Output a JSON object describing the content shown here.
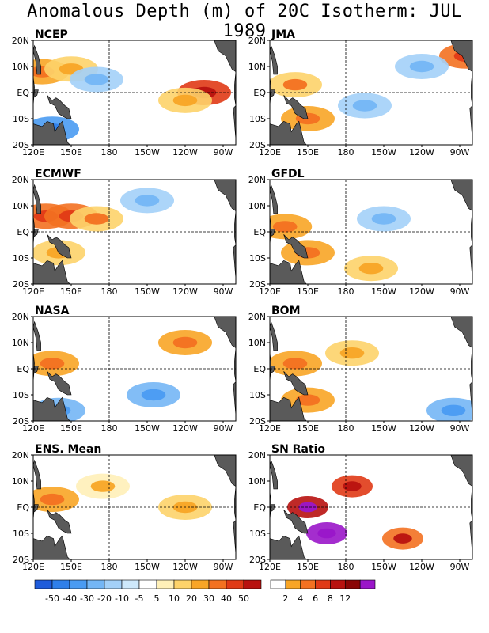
{
  "page": {
    "title": "Anomalous Depth (m) of 20C Isotherm: JUL 1989"
  },
  "colors": {
    "land": "#5a5a5a",
    "anomaly_scale": [
      "#1f5cdb",
      "#2f7fe9",
      "#4a9bf2",
      "#74b6f5",
      "#a3d0f8",
      "#cde8fb",
      "#ffffff",
      "#fff0b8",
      "#fdd36a",
      "#f8a526",
      "#f37121",
      "#e03a16",
      "#b8120f",
      "#8a0505",
      "#9a16c9"
    ],
    "snr_scale": [
      "#ffffff",
      "#f8a526",
      "#f37121",
      "#e03a16",
      "#b8120f",
      "#8a0505",
      "#9a16c9"
    ]
  },
  "chart_data": [
    {
      "type": "heatmap",
      "title": "NCEP",
      "x_tick_labels": [
        "120E",
        "150E",
        "180",
        "150W",
        "120W",
        "90W"
      ],
      "y_tick_labels": [
        "20N",
        "10N",
        "EQ",
        "10S",
        "20S"
      ],
      "xlim": [
        "120E",
        "80W"
      ],
      "ylim": [
        "20S",
        "20N"
      ],
      "features": [
        {
          "lon": 127,
          "lat": 8,
          "value": 25
        },
        {
          "lon": 150,
          "lat": 9,
          "value": 12
        },
        {
          "lon": 255,
          "lat": 0,
          "value": 40
        },
        {
          "lon": 240,
          "lat": -3,
          "value": 12
        },
        {
          "lon": 135,
          "lat": -14,
          "value": -30
        },
        {
          "lon": 170,
          "lat": 5,
          "value": -12
        }
      ]
    },
    {
      "type": "heatmap",
      "title": "JMA",
      "x_tick_labels": [
        "120E",
        "150E",
        "180",
        "150W",
        "120W",
        "90W"
      ],
      "y_tick_labels": [
        "20N",
        "10N",
        "EQ",
        "10S",
        "20S"
      ],
      "xlim": [
        "120E",
        "80W"
      ],
      "ylim": [
        "20S",
        "20N"
      ],
      "features": [
        {
          "lon": 140,
          "lat": 3,
          "value": 18
        },
        {
          "lon": 150,
          "lat": -10,
          "value": 25
        },
        {
          "lon": 275,
          "lat": 14,
          "value": 30
        },
        {
          "lon": 195,
          "lat": -5,
          "value": -12
        },
        {
          "lon": 240,
          "lat": 10,
          "value": -10
        }
      ]
    },
    {
      "type": "heatmap",
      "title": "ECMWF",
      "x_tick_labels": [
        "120E",
        "150E",
        "180",
        "150W",
        "120W",
        "90W"
      ],
      "y_tick_labels": [
        "20N",
        "10N",
        "EQ",
        "10S",
        "20S"
      ],
      "xlim": [
        "120E",
        "80W"
      ],
      "ylim": [
        "20S",
        "20N"
      ],
      "features": [
        {
          "lon": 130,
          "lat": 6,
          "value": 30
        },
        {
          "lon": 150,
          "lat": 6,
          "value": 30
        },
        {
          "lon": 170,
          "lat": 5,
          "value": 18
        },
        {
          "lon": 140,
          "lat": -8,
          "value": 12
        },
        {
          "lon": 210,
          "lat": 12,
          "value": -12
        }
      ]
    },
    {
      "type": "heatmap",
      "title": "GFDL",
      "x_tick_labels": [
        "120E",
        "150E",
        "180",
        "150W",
        "120W",
        "90W"
      ],
      "y_tick_labels": [
        "20N",
        "10N",
        "EQ",
        "10S",
        "20S"
      ],
      "xlim": [
        "120E",
        "80W"
      ],
      "ylim": [
        "20S",
        "20N"
      ],
      "features": [
        {
          "lon": 132,
          "lat": 2,
          "value": 25
        },
        {
          "lon": 150,
          "lat": -8,
          "value": 20
        },
        {
          "lon": 200,
          "lat": -14,
          "value": 12
        },
        {
          "lon": 210,
          "lat": 5,
          "value": -12
        }
      ]
    },
    {
      "type": "heatmap",
      "title": "NASA",
      "x_tick_labels": [
        "120E",
        "150E",
        "180",
        "150W",
        "120W",
        "90W"
      ],
      "y_tick_labels": [
        "20N",
        "10N",
        "EQ",
        "10S",
        "20S"
      ],
      "xlim": [
        "120E",
        "80W"
      ],
      "ylim": [
        "20S",
        "20N"
      ],
      "features": [
        {
          "lon": 135,
          "lat": 2,
          "value": 20
        },
        {
          "lon": 240,
          "lat": 10,
          "value": 25
        },
        {
          "lon": 215,
          "lat": -10,
          "value": -20
        },
        {
          "lon": 140,
          "lat": -16,
          "value": -20
        }
      ]
    },
    {
      "type": "heatmap",
      "title": "BOM",
      "x_tick_labels": [
        "120E",
        "150E",
        "180",
        "150W",
        "120W",
        "90W"
      ],
      "y_tick_labels": [
        "20N",
        "10N",
        "EQ",
        "10S",
        "20S"
      ],
      "xlim": [
        "120E",
        "80W"
      ],
      "ylim": [
        "20S",
        "20N"
      ],
      "features": [
        {
          "lon": 140,
          "lat": 2,
          "value": 25
        },
        {
          "lon": 185,
          "lat": 6,
          "value": 15
        },
        {
          "lon": 150,
          "lat": -12,
          "value": 20
        },
        {
          "lon": 265,
          "lat": -16,
          "value": -20
        }
      ]
    },
    {
      "type": "heatmap",
      "title": "ENS. Mean",
      "x_tick_labels": [
        "120E",
        "150E",
        "180",
        "150W",
        "120W",
        "90W"
      ],
      "y_tick_labels": [
        "20N",
        "10N",
        "EQ",
        "10S",
        "20S"
      ],
      "xlim": [
        "120E",
        "80W"
      ],
      "ylim": [
        "20S",
        "20N"
      ],
      "features": [
        {
          "lon": 135,
          "lat": 3,
          "value": 20
        },
        {
          "lon": 240,
          "lat": 0,
          "value": 12
        },
        {
          "lon": 175,
          "lat": 8,
          "value": 8
        }
      ]
    },
    {
      "type": "heatmap",
      "title": "SN Ratio",
      "x_tick_labels": [
        "120E",
        "150E",
        "180",
        "150W",
        "120W",
        "90W"
      ],
      "y_tick_labels": [
        "20N",
        "10N",
        "EQ",
        "10S",
        "20S"
      ],
      "xlim": [
        "120E",
        "80W"
      ],
      "ylim": [
        "20S",
        "20N"
      ],
      "features": [
        {
          "lon": 150,
          "lat": 0,
          "value": 8
        },
        {
          "lon": 165,
          "lat": -10,
          "value": 12
        },
        {
          "lon": 185,
          "lat": 8,
          "value": 6
        },
        {
          "lon": 225,
          "lat": -12,
          "value": 4
        }
      ]
    }
  ],
  "colorbars": [
    {
      "labels": [
        "-50",
        "-40",
        "-30",
        "-20",
        "-10",
        "-5",
        "5",
        "10",
        "20",
        "30",
        "40",
        "50"
      ]
    },
    {
      "labels": [
        "2",
        "4",
        "6",
        "8",
        "12"
      ]
    }
  ]
}
